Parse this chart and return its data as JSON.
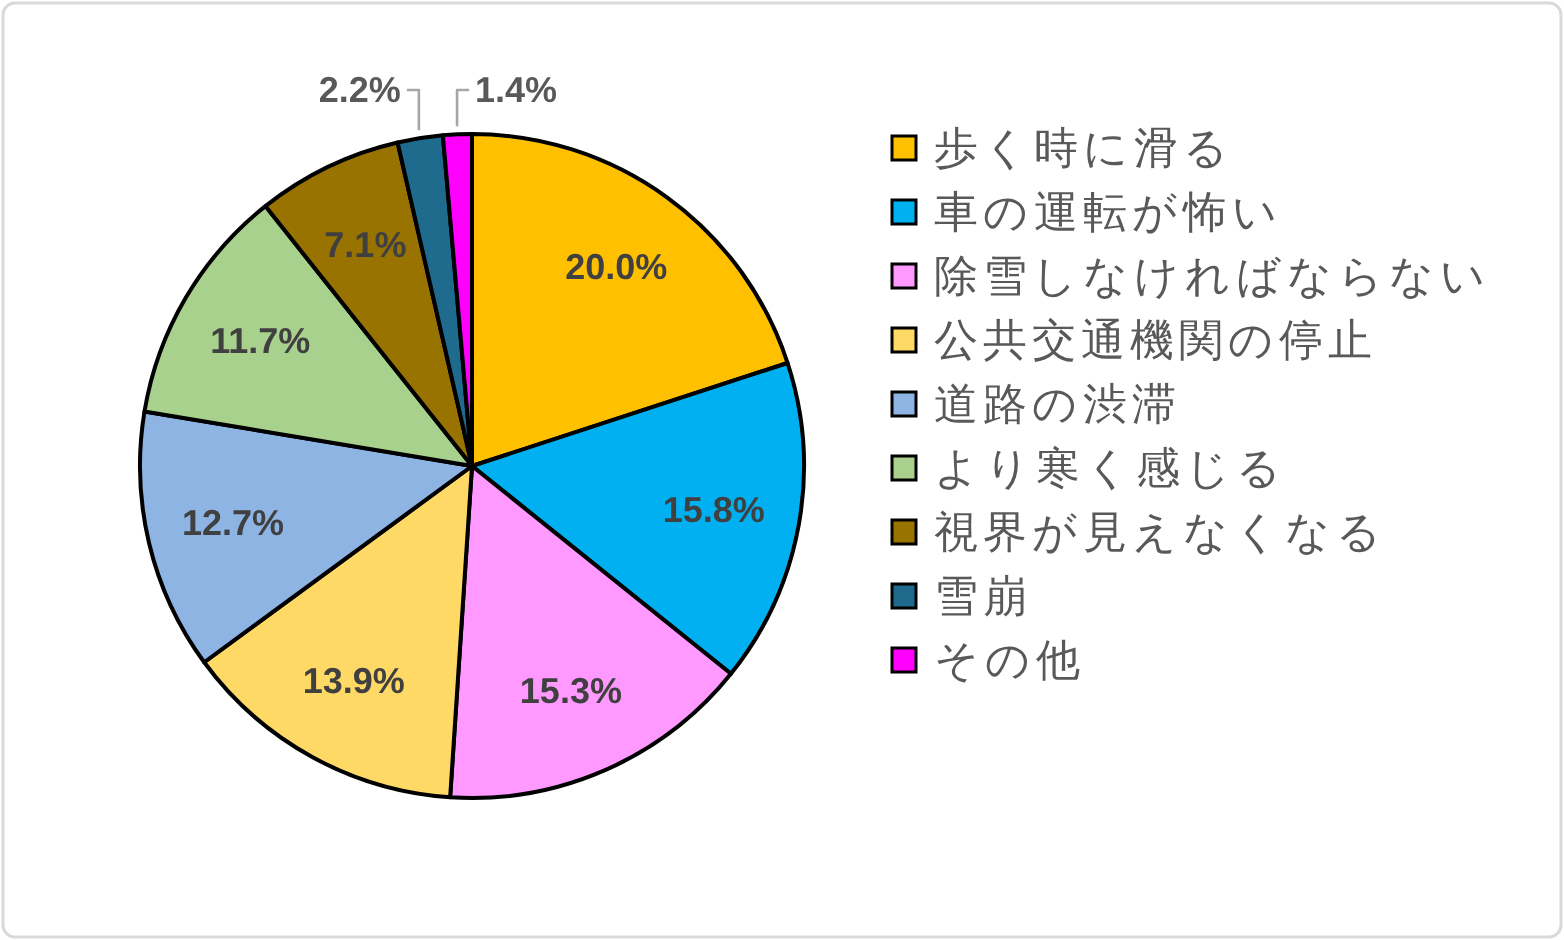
{
  "chart_data": {
    "type": "pie",
    "categories": [
      "歩く時に滑る",
      "車の運転が怖い",
      "除雪しなければならない",
      "公共交通機関の停止",
      "道路の渋滞",
      "より寒く感じる",
      "視界が見えなくなる",
      "雪崩",
      "その他"
    ],
    "values": [
      20.0,
      15.8,
      15.3,
      13.9,
      12.7,
      11.7,
      7.1,
      2.2,
      1.4
    ],
    "colors": [
      "#ffc000",
      "#00b0f0",
      "#ff99ff",
      "#ffd966",
      "#8db4e2",
      "#a9d18e",
      "#997300",
      "#1f6b8e",
      "#ff00ff"
    ],
    "value_labels": [
      "20.0%",
      "15.8%",
      "15.3%",
      "13.9%",
      "12.7%",
      "11.7%",
      "7.1%",
      "2.2%",
      "1.4%"
    ],
    "legend": "right"
  }
}
